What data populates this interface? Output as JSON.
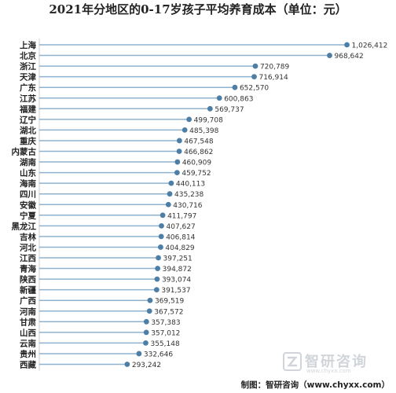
{
  "chart_data": {
    "type": "lollipop",
    "title": "2021年分地区的0-17岁孩子平均养育成本（单位：元）",
    "xlabel": "",
    "ylabel": "",
    "xlim": [
      0,
      1080000
    ],
    "grid": false,
    "legend": "none",
    "colors": {
      "line": "#8fb3cf",
      "dot": "#4d7ea6",
      "axis": "#cccccc"
    },
    "categories": [
      "上海",
      "北京",
      "浙江",
      "天津",
      "广东",
      "江苏",
      "福建",
      "辽宁",
      "湖北",
      "重庆",
      "内蒙古",
      "湖南",
      "山东",
      "海南",
      "四川",
      "安徽",
      "宁夏",
      "黑龙江",
      "吉林",
      "河北",
      "江西",
      "青海",
      "陕西",
      "新疆",
      "广西",
      "河南",
      "甘肃",
      "山西",
      "云南",
      "贵州",
      "西藏"
    ],
    "values": [
      1026412,
      968642,
      720789,
      716914,
      652570,
      600863,
      569737,
      499708,
      485398,
      467548,
      466862,
      460909,
      459752,
      440113,
      435238,
      430716,
      411797,
      407627,
      406814,
      404829,
      397251,
      394872,
      393074,
      391537,
      369519,
      367572,
      357383,
      357012,
      355148,
      332646,
      293242
    ],
    "value_labels": [
      "1,026,412",
      "968,642",
      "720,789",
      "716,914",
      "652,570",
      "600,863",
      "569,737",
      "499,708",
      "485,398",
      "467,548",
      "466,862",
      "460,909",
      "459,752",
      "440,113",
      "435,238",
      "430,716",
      "411,797",
      "407,627",
      "406,814",
      "404,829",
      "397,251",
      "394,872",
      "393,074",
      "391,537",
      "369,519",
      "367,572",
      "357,383",
      "357,012",
      "355,148",
      "332,646",
      "293,242"
    ]
  },
  "watermark": {
    "name": "智研咨询",
    "url": "www.chyxx.com",
    "icon": "zhiyan-logo-icon"
  },
  "source": "制图：智研咨询（www.chyxx.com）"
}
